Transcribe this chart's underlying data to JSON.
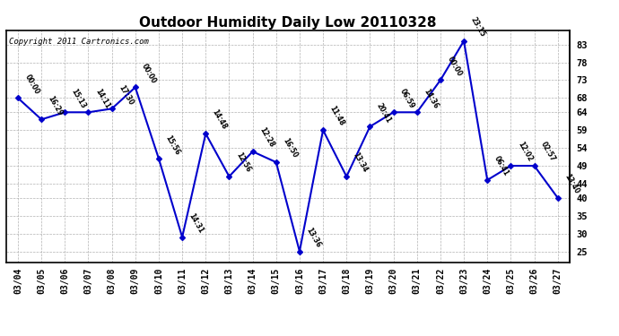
{
  "title": "Outdoor Humidity Daily Low 20110328",
  "copyright": "Copyright 2011 Cartronics.com",
  "dates": [
    "03/04",
    "03/05",
    "03/06",
    "03/07",
    "03/08",
    "03/09",
    "03/10",
    "03/11",
    "03/12",
    "03/13",
    "03/14",
    "03/15",
    "03/16",
    "03/17",
    "03/18",
    "03/19",
    "03/20",
    "03/21",
    "03/22",
    "03/23",
    "03/24",
    "03/25",
    "03/26",
    "03/27"
  ],
  "values": [
    68,
    62,
    64,
    64,
    65,
    71,
    51,
    29,
    58,
    46,
    53,
    50,
    25,
    59,
    46,
    60,
    64,
    64,
    73,
    84,
    45,
    49,
    49,
    40
  ],
  "time_labels": [
    "00:00",
    "16:29",
    "15:13",
    "14:11",
    "17:30",
    "00:00",
    "15:56",
    "14:31",
    "14:48",
    "12:56",
    "12:28",
    "16:50",
    "13:36",
    "11:48",
    "13:34",
    "20:41",
    "06:59",
    "14:36",
    "00:00",
    "23:15",
    "06:41",
    "12:02",
    "02:57",
    "13:40"
  ],
  "line_color": "#0000cc",
  "marker_color": "#0000cc",
  "bg_color": "#ffffff",
  "grid_color": "#aaaaaa",
  "title_fontsize": 11,
  "ylim": [
    22,
    87
  ],
  "yticks_right": [
    25,
    30,
    35,
    40,
    44,
    49,
    54,
    59,
    64,
    68,
    73,
    78,
    83
  ]
}
